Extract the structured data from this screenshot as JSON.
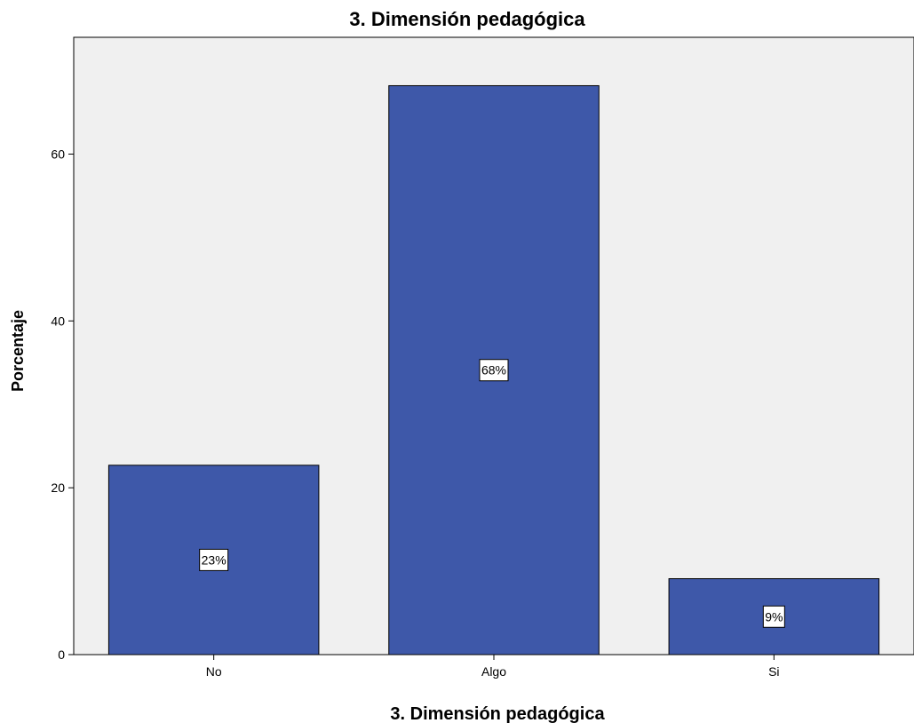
{
  "chart_data": {
    "type": "bar",
    "title": "3. Dimensión pedagógica",
    "xlabel": "3. Dimensión pedagógica",
    "ylabel": "Porcentaje",
    "categories": [
      "No",
      "Algo",
      "Si"
    ],
    "values": [
      22.7,
      68.2,
      9.1
    ],
    "data_labels": [
      "23%",
      "68%",
      "9%"
    ],
    "yticks": [
      0,
      20,
      40,
      60
    ],
    "ylim": [
      0,
      74
    ],
    "grid": false,
    "colors": {
      "bar": "#3e58a9",
      "plot_background": "#f0f0f0",
      "bar_outline": "#000000"
    }
  }
}
